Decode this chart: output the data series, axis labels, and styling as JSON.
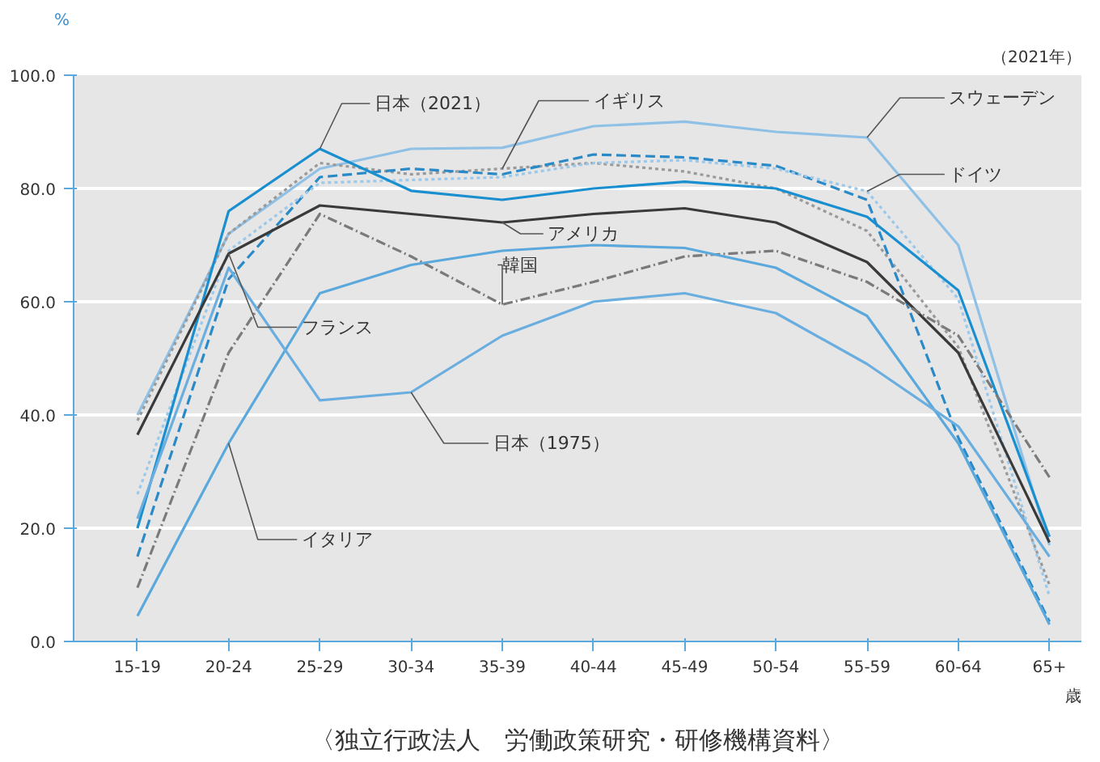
{
  "chart_data": {
    "type": "line",
    "ylabel": "%",
    "xlabel": "歳",
    "subtitle": "（2021年）",
    "categories": [
      "15-19",
      "20-24",
      "25-29",
      "30-34",
      "35-39",
      "40-44",
      "45-49",
      "50-54",
      "55-59",
      "60-64",
      "65+"
    ],
    "ylim": [
      0,
      100
    ],
    "yticks": [
      {
        "value": 0,
        "label": "0.0"
      },
      {
        "value": 20,
        "label": "20.0"
      },
      {
        "value": 40,
        "label": "40.0"
      },
      {
        "value": 60,
        "label": "60.0"
      },
      {
        "value": 80,
        "label": "80.0"
      },
      {
        "value": 100,
        "label": "100.0"
      }
    ],
    "grid": "y",
    "marker": "none",
    "series": [
      {
        "color": "#8fc0e6",
        "line_style": "solid",
        "values": [
          40,
          72,
          83.5,
          87,
          87.2,
          91,
          91.8,
          90,
          89,
          70,
          17
        ]
      },
      {
        "color": "#9a9a9a",
        "line_style": "dotted",
        "values": [
          39,
          72,
          84.5,
          82.5,
          83.5,
          84.5,
          83,
          80,
          72.5,
          52,
          10
        ]
      },
      {
        "color": "#2a8ac8",
        "line_style": "dashed",
        "values": [
          15,
          64,
          82,
          83.5,
          82.5,
          86,
          85.5,
          84,
          78,
          36,
          3.5
        ]
      },
      {
        "color": "#9cc8ea",
        "line_style": "dotted",
        "values": [
          26,
          69,
          81,
          81.5,
          82,
          84.5,
          85,
          83.5,
          79.5,
          60.5,
          8
        ]
      },
      {
        "color": "#1a8fd0",
        "line_style": "solid",
        "values": [
          20,
          76,
          87,
          79.6,
          78,
          80,
          81.2,
          80,
          75,
          62,
          18.5
        ]
      },
      {
        "color": "#3a3a3a",
        "line_style": "solid",
        "values": [
          36.5,
          68.5,
          77,
          75.5,
          74,
          75.5,
          76.5,
          74,
          67,
          51,
          17.5
        ]
      },
      {
        "color": "#7a7a7a",
        "line_style": "dashdot",
        "values": [
          9.5,
          51,
          75.5,
          68,
          59.5,
          63.5,
          68,
          69,
          63.5,
          54,
          29
        ]
      },
      {
        "color": "#5aa8dc",
        "line_style": "solid",
        "values": [
          4.5,
          35,
          61.5,
          66.5,
          69,
          70,
          69.5,
          66,
          57.5,
          35,
          3
        ]
      },
      {
        "color": "#6aaee0",
        "line_style": "solid",
        "values": [
          21.7,
          66,
          42.6,
          44,
          54,
          60,
          61.5,
          58,
          49,
          38,
          15
        ]
      }
    ],
    "annotations": [
      {
        "text": "日本（2021）",
        "x": "25-29",
        "y": 87
      },
      {
        "text": "イギリス",
        "x": "35-39",
        "y": 83.5
      },
      {
        "text": "スウェーデン",
        "x": "55-59",
        "y": 89
      },
      {
        "text": "ドイツ",
        "x": "55-59",
        "y": 79.5
      },
      {
        "text": "アメリカ",
        "x": "35-39",
        "y": 74
      },
      {
        "text": "フランス",
        "x": "20-24",
        "y": 68.5
      },
      {
        "text": "韓国",
        "x": "35-39",
        "y": 59.5
      },
      {
        "text": "日本（1975）",
        "x": "30-34",
        "y": 44
      },
      {
        "text": "イタリア",
        "x": "20-24",
        "y": 35
      },
      "〈独立行政法人　労働政策研究・研修機構資料〉"
    ]
  }
}
